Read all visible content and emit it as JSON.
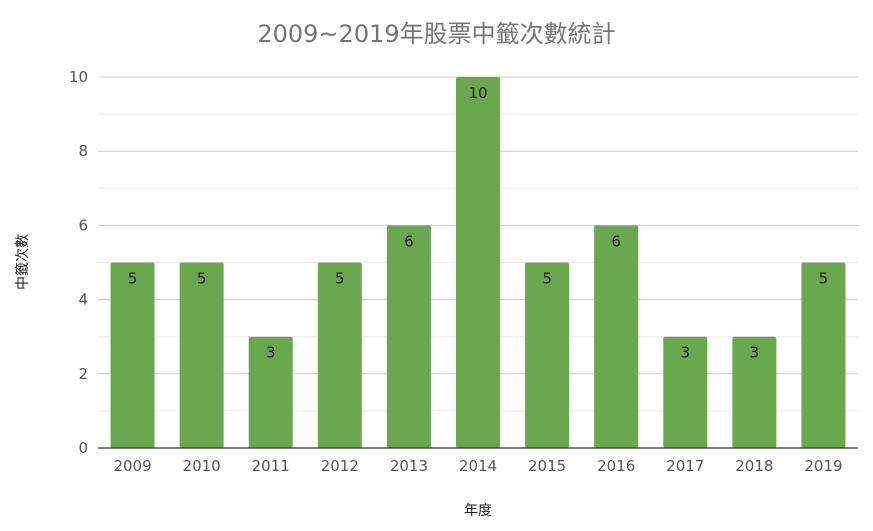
{
  "chart_data": {
    "type": "bar",
    "title": "2009~2019年股票中籤次數統計",
    "xlabel": "年度",
    "ylabel": "中籤次數",
    "categories": [
      "2009",
      "2010",
      "2011",
      "2012",
      "2013",
      "2014",
      "2015",
      "2016",
      "2017",
      "2018",
      "2019"
    ],
    "values": [
      5,
      5,
      3,
      5,
      6,
      10,
      5,
      6,
      3,
      3,
      5
    ],
    "ylim": [
      0,
      10
    ],
    "yticks": [
      0,
      2,
      4,
      6,
      8,
      10
    ],
    "grid": true,
    "legend": "none",
    "bar_color": "#6aa84f"
  }
}
